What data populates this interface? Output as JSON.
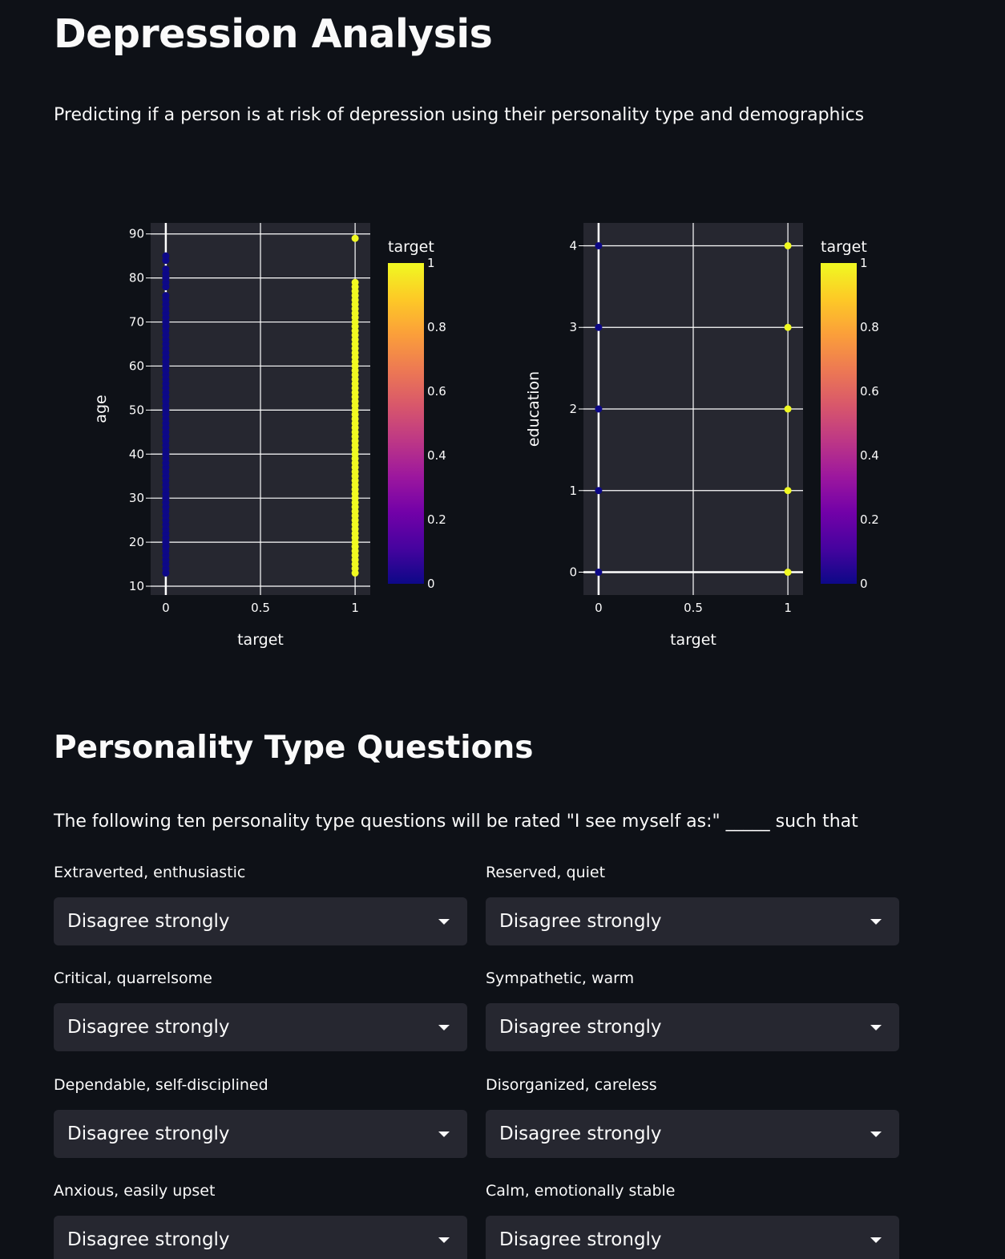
{
  "header": {
    "title": "Depression Analysis",
    "subtitle": "Predicting if a person is at risk of depression using their personality type and demographics"
  },
  "chart_data": [
    {
      "type": "scatter",
      "xlabel": "target",
      "ylabel": "age",
      "xlim": [
        -0.08,
        1.08
      ],
      "ylim": [
        8,
        92.5
      ],
      "x_ticks": [
        "0",
        "0.5",
        "1"
      ],
      "y_ticks": [
        "10",
        "20",
        "30",
        "40",
        "50",
        "60",
        "70",
        "80",
        "90"
      ],
      "grid": true,
      "colorbar": {
        "title": "target",
        "ticks": [
          "0",
          "0.2",
          "0.4",
          "0.6",
          "0.8",
          "1"
        ],
        "colors": [
          "#0d0887",
          "#46039f",
          "#7201a8",
          "#9c179e",
          "#bd3786",
          "#d8576b",
          "#ed7953",
          "#fb9f3a",
          "#fdca26",
          "#f0f921"
        ]
      },
      "series": [
        {
          "x": 0,
          "y_range": [
            13,
            76
          ],
          "y_extra": [
            78,
            79,
            80,
            81,
            82,
            84,
            85
          ],
          "color": "#0d0887"
        },
        {
          "x": 1,
          "y_range": [
            13,
            79
          ],
          "y_extra": [
            89
          ],
          "color": "#f0f921"
        }
      ]
    },
    {
      "type": "scatter",
      "xlabel": "target",
      "ylabel": "education",
      "xlim": [
        -0.08,
        1.08
      ],
      "ylim": [
        -0.28,
        4.28
      ],
      "x_ticks": [
        "0",
        "0.5",
        "1"
      ],
      "y_ticks": [
        "0",
        "1",
        "2",
        "3",
        "4"
      ],
      "grid": true,
      "colorbar": {
        "title": "target",
        "ticks": [
          "0",
          "0.2",
          "0.4",
          "0.6",
          "0.8",
          "1"
        ],
        "colors": [
          "#0d0887",
          "#46039f",
          "#7201a8",
          "#9c179e",
          "#bd3786",
          "#d8576b",
          "#ed7953",
          "#fb9f3a",
          "#fdca26",
          "#f0f921"
        ]
      },
      "series": [
        {
          "x": 0,
          "y": [
            0,
            1,
            2,
            3,
            4
          ],
          "color": "#0d0887"
        },
        {
          "x": 1,
          "y": [
            0,
            1,
            2,
            3,
            4
          ],
          "color": "#f0f921"
        }
      ]
    }
  ],
  "personality": {
    "heading": "Personality Type Questions",
    "intro": "The following ten personality type questions will be rated \"I see myself as:\" _____ such that",
    "questions": [
      {
        "label": "Extraverted, enthusiastic",
        "value": "Disagree strongly"
      },
      {
        "label": "Reserved, quiet",
        "value": "Disagree strongly"
      },
      {
        "label": "Critical, quarrelsome",
        "value": "Disagree strongly"
      },
      {
        "label": "Sympathetic, warm",
        "value": "Disagree strongly"
      },
      {
        "label": "Dependable, self-disciplined",
        "value": "Disagree strongly"
      },
      {
        "label": "Disorganized, careless",
        "value": "Disagree strongly"
      },
      {
        "label": "Anxious, easily upset",
        "value": "Disagree strongly"
      },
      {
        "label": "Calm, emotionally stable",
        "value": "Disagree strongly"
      }
    ]
  }
}
